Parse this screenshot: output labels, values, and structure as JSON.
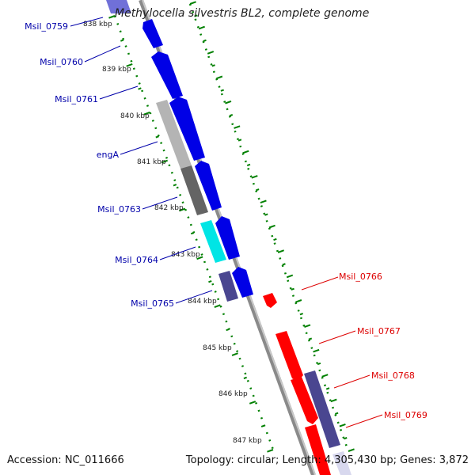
{
  "title": "Methylocella silvestris BL2, complete genome",
  "accession_text": "Accession: NC_011666",
  "info_text": "Topology: circular; Length: 4,305,430 bp; Genes: 3,872",
  "colors": {
    "forward_cds": "#0000e6",
    "reverse_cds": "#ff0000",
    "rna_gene": "#b0b0b0",
    "other_gene": "#646464",
    "cyan_gene": "#00e5e5",
    "pseudogene": "#4a4690",
    "tick": "#008000",
    "label_forward": "#0000aa",
    "label_reverse": "#dd0000",
    "backbone": "#888888"
  },
  "kbp_ticks": [
    "838 kbp",
    "839 kbp",
    "840 kbp",
    "841 kbp",
    "842 kbp",
    "843 kbp",
    "844 kbp",
    "845 kbp",
    "846 kbp",
    "847 kbp"
  ],
  "gene_labels": {
    "forward": [
      "Msil_0759",
      "Msil_0760",
      "Msil_0761",
      "engA",
      "Msil_0763",
      "Msil_0764",
      "Msil_0765"
    ],
    "reverse": [
      "Msil_0766",
      "Msil_0767",
      "Msil_0768",
      "Msil_0769"
    ]
  }
}
